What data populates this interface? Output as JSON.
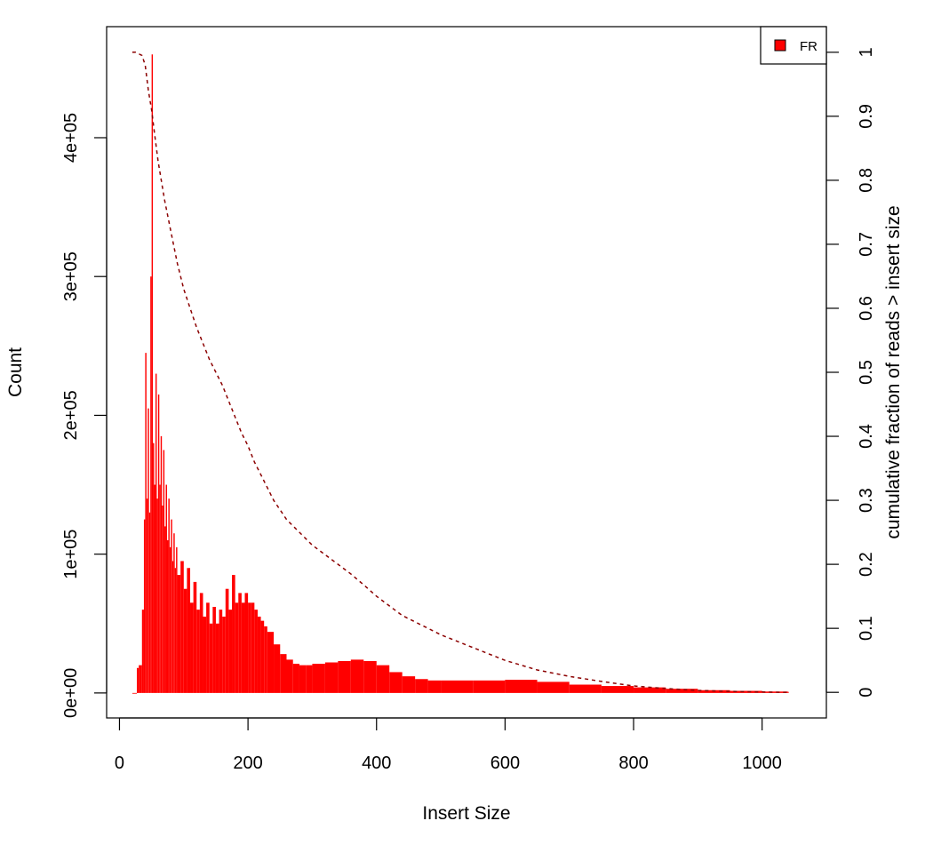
{
  "chart_data": {
    "type": "area",
    "title": "",
    "xlabel": "Insert Size",
    "ylabel": "Count",
    "y2label": "cumulative fraction of reads > insert size",
    "xlim": [
      -20,
      1100
    ],
    "ylim": [
      -18000,
      480000
    ],
    "y2lim": [
      -0.04,
      1.04
    ],
    "xticks": [
      0,
      200,
      400,
      600,
      800,
      1000
    ],
    "xtick_labels": [
      "0",
      "200",
      "400",
      "600",
      "800",
      "1000"
    ],
    "yticks": [
      0,
      100000,
      200000,
      300000,
      400000
    ],
    "ytick_labels": [
      "0e+00",
      "1e+05",
      "2e+05",
      "3e+05",
      "4e+05"
    ],
    "y2ticks": [
      0,
      0.1,
      0.2,
      0.3,
      0.4,
      0.5,
      0.6,
      0.7,
      0.8,
      0.9,
      1
    ],
    "y2tick_labels": [
      "0",
      "0.1",
      "0.2",
      "0.3",
      "0.4",
      "0.5",
      "0.6",
      "0.7",
      "0.8",
      "0.9",
      "1"
    ],
    "grid": false,
    "legend": {
      "position": "top-right",
      "entries": [
        {
          "label": "FR",
          "color": "#FF0000"
        }
      ]
    },
    "series": [
      {
        "name": "FR",
        "kind": "histogram",
        "color": "#FF0000",
        "x": [
          20,
          25,
          27,
          30,
          35,
          38,
          40,
          42,
          44,
          46,
          48,
          50,
          52,
          54,
          56,
          58,
          60,
          62,
          64,
          66,
          68,
          70,
          72,
          74,
          76,
          78,
          80,
          82,
          84,
          86,
          88,
          90,
          95,
          100,
          105,
          110,
          115,
          120,
          125,
          130,
          135,
          140,
          145,
          150,
          155,
          160,
          165,
          170,
          175,
          180,
          185,
          190,
          195,
          200,
          205,
          210,
          215,
          220,
          225,
          230,
          240,
          250,
          260,
          270,
          280,
          290,
          300,
          320,
          340,
          360,
          380,
          400,
          420,
          440,
          460,
          480,
          500,
          550,
          600,
          650,
          700,
          750,
          800,
          850,
          900,
          950,
          1000,
          1040
        ],
        "y": [
          0,
          0,
          18000,
          20000,
          60000,
          125000,
          245000,
          140000,
          205000,
          130000,
          300000,
          460000,
          180000,
          150000,
          230000,
          140000,
          215000,
          150000,
          185000,
          135000,
          175000,
          120000,
          150000,
          110000,
          140000,
          105000,
          125000,
          95000,
          115000,
          90000,
          105000,
          85000,
          95000,
          75000,
          90000,
          65000,
          80000,
          60000,
          72000,
          55000,
          65000,
          50000,
          62000,
          50000,
          60000,
          55000,
          75000,
          60000,
          85000,
          65000,
          72000,
          65000,
          72000,
          65000,
          65000,
          60000,
          55000,
          52000,
          48000,
          44000,
          35000,
          28000,
          24000,
          21000,
          20000,
          20000,
          21000,
          22000,
          23000,
          24000,
          23000,
          20000,
          15000,
          12000,
          10000,
          9000,
          9000,
          9000,
          9500,
          8000,
          6000,
          5000,
          4000,
          3000,
          2000,
          1500,
          1000,
          800
        ]
      },
      {
        "name": "cumulative",
        "kind": "line",
        "style": "dashed",
        "color": "#8B0000",
        "x": [
          20,
          25,
          35,
          40,
          45,
          50,
          55,
          60,
          70,
          80,
          90,
          100,
          110,
          120,
          130,
          140,
          150,
          160,
          170,
          180,
          190,
          200,
          210,
          220,
          230,
          240,
          250,
          260,
          280,
          300,
          320,
          340,
          360,
          380,
          400,
          420,
          440,
          460,
          480,
          500,
          550,
          600,
          650,
          700,
          750,
          800,
          850,
          900,
          950,
          1000,
          1040
        ],
        "y": [
          1.0,
          1.0,
          0.995,
          0.98,
          0.94,
          0.91,
          0.87,
          0.83,
          0.77,
          0.72,
          0.67,
          0.63,
          0.6,
          0.57,
          0.545,
          0.52,
          0.5,
          0.48,
          0.455,
          0.43,
          0.405,
          0.385,
          0.36,
          0.34,
          0.32,
          0.3,
          0.285,
          0.27,
          0.25,
          0.23,
          0.215,
          0.2,
          0.185,
          0.168,
          0.15,
          0.135,
          0.12,
          0.11,
          0.1,
          0.09,
          0.07,
          0.05,
          0.035,
          0.025,
          0.017,
          0.01,
          0.006,
          0.003,
          0.0015,
          0.0005,
          0.0
        ]
      }
    ]
  }
}
